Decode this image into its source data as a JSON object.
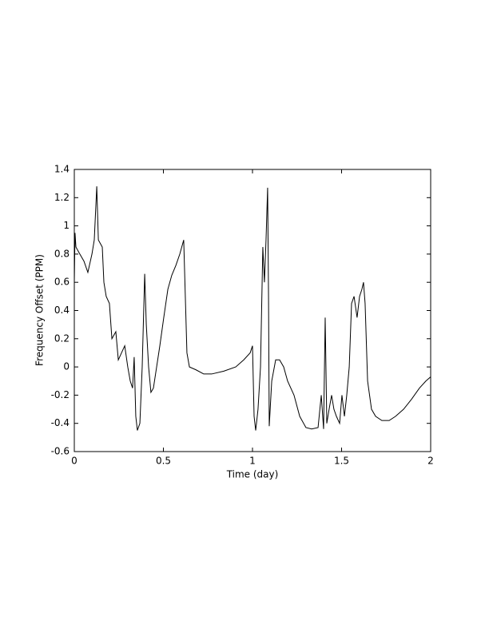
{
  "chart_data": {
    "type": "line",
    "x_label": "Time (day)",
    "y_label": "Frequency Offset (PPM)",
    "x": [
      0,
      0.004,
      0.009,
      0.031,
      0.054,
      0.076,
      0.099,
      0.112,
      0.126,
      0.135,
      0.157,
      0.166,
      0.179,
      0.197,
      0.211,
      0.233,
      0.247,
      0.265,
      0.283,
      0.3,
      0.314,
      0.327,
      0.336,
      0.345,
      0.354,
      0.368,
      0.381,
      0.395,
      0.404,
      0.417,
      0.43,
      0.444,
      0.462,
      0.48,
      0.502,
      0.525,
      0.547,
      0.57,
      0.592,
      0.614,
      0.623,
      0.632,
      0.646,
      0.682,
      0.726,
      0.771,
      0.839,
      0.906,
      0.951,
      0.987,
      1.0,
      1.009,
      1.018,
      1.031,
      1.045,
      1.058,
      1.067,
      1.076,
      1.085,
      1.09,
      1.094,
      1.108,
      1.13,
      1.152,
      1.175,
      1.197,
      1.233,
      1.265,
      1.3,
      1.332,
      1.368,
      1.386,
      1.399,
      1.408,
      1.417,
      1.43,
      1.444,
      1.457,
      1.471,
      1.489,
      1.502,
      1.516,
      1.529,
      1.543,
      1.556,
      1.57,
      1.587,
      1.601,
      1.614,
      1.623,
      1.632,
      1.646,
      1.668,
      1.691,
      1.726,
      1.767,
      1.803,
      1.848,
      1.892,
      1.937,
      1.973,
      2.0
    ],
    "values": [
      0.6,
      0.95,
      0.85,
      0.8,
      0.75,
      0.67,
      0.8,
      0.9,
      1.28,
      0.9,
      0.85,
      0.6,
      0.5,
      0.45,
      0.2,
      0.25,
      0.05,
      0.1,
      0.15,
      0.0,
      -0.1,
      -0.15,
      0.07,
      -0.35,
      -0.45,
      -0.4,
      0.0,
      0.66,
      0.3,
      0.0,
      -0.18,
      -0.15,
      0.0,
      0.15,
      0.35,
      0.55,
      0.65,
      0.72,
      0.8,
      0.9,
      0.5,
      0.1,
      0.0,
      -0.02,
      -0.05,
      -0.05,
      -0.03,
      0.0,
      0.05,
      0.1,
      0.15,
      -0.35,
      -0.45,
      -0.3,
      0.0,
      0.85,
      0.6,
      0.9,
      1.27,
      0.5,
      -0.42,
      -0.1,
      0.05,
      0.05,
      0.0,
      -0.1,
      -0.2,
      -0.35,
      -0.43,
      -0.44,
      -0.43,
      -0.2,
      -0.44,
      0.35,
      -0.4,
      -0.3,
      -0.2,
      -0.3,
      -0.35,
      -0.4,
      -0.2,
      -0.35,
      -0.2,
      0.0,
      0.45,
      0.5,
      0.35,
      0.5,
      0.55,
      0.6,
      0.45,
      -0.1,
      -0.3,
      -0.35,
      -0.38,
      -0.38,
      -0.35,
      -0.3,
      -0.23,
      -0.15,
      -0.1,
      -0.07
    ],
    "color": "#000000",
    "xlim": [
      0,
      2
    ],
    "xticks": [
      0,
      0.5,
      1,
      1.5,
      2
    ],
    "ylim": [
      -0.6,
      1.4
    ],
    "yticks": [
      -0.6,
      -0.4,
      -0.2,
      0,
      0.2,
      0.4,
      0.6,
      0.8,
      1,
      1.2,
      1.4
    ],
    "grid": false
  }
}
